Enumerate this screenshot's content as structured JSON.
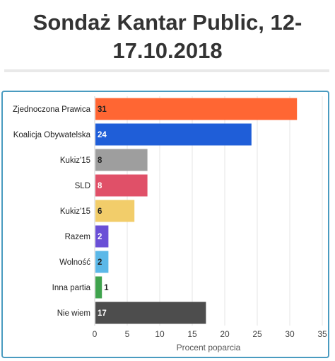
{
  "title": "Sondaż Kantar Public, 12-17.10.2018",
  "title_lines": [
    "Sondaż Kantar Public, 12-",
    "17.10.2018"
  ],
  "chart_data": {
    "type": "bar",
    "orientation": "horizontal",
    "categories": [
      "Zjednoczona Prawica",
      "Koalicja Obywatelska",
      "Kukiz'15",
      "SLD",
      "Kukiz'15",
      "Razem",
      "Wolność",
      "Inna partia",
      "Nie wiem"
    ],
    "values": [
      31,
      24,
      8,
      8,
      6,
      2,
      2,
      1,
      17
    ],
    "colors": [
      "#ff6633",
      "#1f5ed8",
      "#9e9e9e",
      "#e05068",
      "#f2cd6a",
      "#6a4fd6",
      "#5bb8e8",
      "#3fa34d",
      "#4d4d4d"
    ],
    "data_labels": [
      "31",
      "24",
      "8",
      "8",
      "6",
      "2",
      "2",
      "1",
      "17"
    ],
    "label_color": [
      "#222222",
      "#ffffff",
      "#222222",
      "#ffffff",
      "#222222",
      "#ffffff",
      "#222222",
      "#222222",
      "#ffffff"
    ],
    "xlabel": "Procent poparcia",
    "xlim": [
      0,
      35
    ],
    "xticks": [
      0,
      5,
      10,
      15,
      20,
      25,
      30,
      35
    ],
    "grid": true,
    "legend": "none"
  }
}
